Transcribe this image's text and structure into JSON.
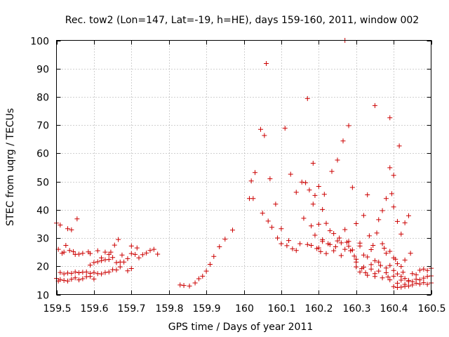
{
  "chart_data": {
    "type": "scatter",
    "title": "Rec. tow2 (Lon=147, Lat=-19, h=HE), days 159-160, 2011, window 002",
    "xlabel": "GPS time / Days of year 2011",
    "ylabel": "STEC from uqrg / TECUs",
    "xlim": [
      159.5,
      160.5
    ],
    "ylim": [
      10,
      100
    ],
    "x_ticks": [
      159.5,
      159.6,
      159.7,
      159.8,
      159.9,
      160.0,
      160.1,
      160.2,
      160.3,
      160.4,
      160.5
    ],
    "x_tick_labels": [
      "159.5",
      "159.6",
      "159.7",
      "159.8",
      "159.9",
      "160",
      "160.1",
      "160.2",
      "160.3",
      "160.4",
      "160.5"
    ],
    "y_ticks": [
      10,
      20,
      30,
      40,
      50,
      60,
      70,
      80,
      90,
      100
    ],
    "y_tick_labels": [
      "10",
      "20",
      "30",
      "40",
      "50",
      "60",
      "70",
      "80",
      "90",
      "100"
    ],
    "grid": true,
    "marker": "+",
    "color": "#cc0000",
    "series": [
      {
        "name": "STEC",
        "points": [
          [
            159.5,
            35.3
          ],
          [
            159.505,
            26.0
          ],
          [
            159.51,
            34.6
          ],
          [
            159.515,
            24.6
          ],
          [
            159.52,
            25.0
          ],
          [
            159.525,
            27.4
          ],
          [
            159.53,
            33.3
          ],
          [
            159.535,
            25.6
          ],
          [
            159.54,
            32.9
          ],
          [
            159.545,
            25.2
          ],
          [
            159.55,
            24.2
          ],
          [
            159.555,
            36.8
          ],
          [
            159.56,
            24.3
          ],
          [
            159.57,
            24.6
          ],
          [
            159.585,
            25.1
          ],
          [
            159.5,
            15.7
          ],
          [
            159.505,
            14.8
          ],
          [
            159.51,
            15.3
          ],
          [
            159.52,
            15.0
          ],
          [
            159.53,
            14.8
          ],
          [
            159.54,
            15.4
          ],
          [
            159.55,
            15.9
          ],
          [
            159.56,
            15.2
          ],
          [
            159.57,
            15.6
          ],
          [
            159.58,
            16.3
          ],
          [
            159.59,
            16.4
          ],
          [
            159.6,
            15.5
          ],
          [
            159.51,
            17.8
          ],
          [
            159.52,
            17.3
          ],
          [
            159.53,
            17.6
          ],
          [
            159.54,
            17.5
          ],
          [
            159.55,
            18.0
          ],
          [
            159.56,
            17.7
          ],
          [
            159.57,
            17.9
          ],
          [
            159.58,
            18.0
          ],
          [
            159.59,
            17.5
          ],
          [
            159.6,
            17.8
          ],
          [
            159.61,
            17.4
          ],
          [
            159.62,
            17.3
          ],
          [
            159.63,
            17.8
          ],
          [
            159.64,
            18.0
          ],
          [
            159.65,
            18.8
          ],
          [
            159.66,
            18.7
          ],
          [
            159.67,
            19.8
          ],
          [
            159.59,
            20.4
          ],
          [
            159.6,
            21.3
          ],
          [
            159.61,
            21.6
          ],
          [
            159.62,
            22.0
          ],
          [
            159.63,
            22.3
          ],
          [
            159.64,
            22.4
          ],
          [
            159.65,
            23.1
          ],
          [
            159.66,
            21.3
          ],
          [
            159.67,
            21.5
          ],
          [
            159.68,
            21.5
          ],
          [
            159.59,
            24.5
          ],
          [
            159.61,
            25.5
          ],
          [
            159.62,
            23.0
          ],
          [
            159.63,
            25.0
          ],
          [
            159.64,
            24.2
          ],
          [
            159.645,
            25.0
          ],
          [
            159.655,
            27.5
          ],
          [
            159.665,
            29.5
          ],
          [
            159.675,
            24.0
          ],
          [
            159.69,
            18.4
          ],
          [
            159.7,
            19.2
          ],
          [
            159.69,
            22.7
          ],
          [
            159.7,
            24.5
          ],
          [
            159.7,
            27.2
          ],
          [
            159.71,
            24.2
          ],
          [
            159.715,
            26.5
          ],
          [
            159.72,
            23.0
          ],
          [
            159.73,
            24.1
          ],
          [
            159.74,
            24.7
          ],
          [
            159.75,
            25.6
          ],
          [
            159.76,
            26.0
          ],
          [
            159.77,
            24.3
          ],
          [
            159.83,
            13.4
          ],
          [
            159.84,
            13.2
          ],
          [
            159.855,
            13.0
          ],
          [
            159.87,
            14.1
          ],
          [
            159.88,
            15.6
          ],
          [
            159.89,
            16.5
          ],
          [
            159.9,
            18.3
          ],
          [
            159.91,
            20.7
          ],
          [
            159.92,
            23.5
          ],
          [
            159.935,
            26.9
          ],
          [
            159.95,
            29.6
          ],
          [
            159.97,
            32.8
          ],
          [
            160.015,
            44.0
          ],
          [
            160.02,
            50.2
          ],
          [
            160.025,
            44.0
          ],
          [
            160.03,
            53.2
          ],
          [
            160.045,
            68.5
          ],
          [
            160.05,
            38.8
          ],
          [
            160.055,
            66.3
          ],
          [
            160.06,
            91.8
          ],
          [
            160.065,
            36.0
          ],
          [
            160.07,
            51.0
          ],
          [
            160.075,
            33.8
          ],
          [
            160.085,
            42.0
          ],
          [
            160.09,
            30.0
          ],
          [
            160.1,
            33.3
          ],
          [
            160.1,
            28.0
          ],
          [
            160.11,
            68.9
          ],
          [
            160.115,
            27.3
          ],
          [
            160.12,
            29.1
          ],
          [
            160.125,
            52.6
          ],
          [
            160.13,
            26.2
          ],
          [
            160.14,
            25.6
          ],
          [
            160.14,
            46.2
          ],
          [
            160.15,
            28.0
          ],
          [
            160.155,
            49.8
          ],
          [
            160.16,
            37.0
          ],
          [
            160.165,
            49.6
          ],
          [
            160.17,
            79.4
          ],
          [
            160.17,
            27.7
          ],
          [
            160.175,
            47.0
          ],
          [
            160.18,
            34.3
          ],
          [
            160.18,
            27.4
          ],
          [
            160.185,
            56.5
          ],
          [
            160.185,
            42.0
          ],
          [
            160.19,
            31.0
          ],
          [
            160.19,
            45.1
          ],
          [
            160.195,
            26.3
          ],
          [
            160.2,
            48.3
          ],
          [
            160.2,
            34.9
          ],
          [
            160.205,
            25.2
          ],
          [
            160.21,
            40.1
          ],
          [
            160.21,
            29.4
          ],
          [
            160.215,
            45.5
          ],
          [
            160.22,
            35.2
          ],
          [
            160.225,
            28.0
          ],
          [
            160.23,
            32.6
          ],
          [
            160.235,
            53.6
          ],
          [
            160.24,
            31.6
          ],
          [
            160.245,
            26.9
          ],
          [
            160.25,
            57.6
          ],
          [
            160.255,
            30.0
          ],
          [
            160.26,
            28.3
          ],
          [
            160.265,
            64.4
          ],
          [
            160.27,
            100.0
          ],
          [
            160.27,
            33.0
          ],
          [
            160.275,
            28.5
          ],
          [
            160.28,
            69.8
          ],
          [
            160.28,
            27.1
          ],
          [
            160.285,
            25.5
          ],
          [
            160.29,
            47.9
          ],
          [
            160.295,
            23.6
          ],
          [
            160.3,
            35.1
          ],
          [
            160.3,
            21.5
          ],
          [
            160.31,
            28.2
          ],
          [
            160.315,
            19.2
          ],
          [
            160.32,
            38.0
          ],
          [
            160.325,
            17.7
          ],
          [
            160.33,
            45.3
          ],
          [
            160.335,
            30.8
          ],
          [
            160.34,
            20.6
          ],
          [
            160.345,
            27.4
          ],
          [
            160.35,
            76.9
          ],
          [
            160.35,
            17.4
          ],
          [
            160.355,
            31.8
          ],
          [
            160.36,
            36.5
          ],
          [
            160.365,
            20.3
          ],
          [
            160.37,
            39.7
          ],
          [
            160.375,
            26.4
          ],
          [
            160.38,
            44.0
          ],
          [
            160.385,
            16.2
          ],
          [
            160.39,
            72.6
          ],
          [
            160.39,
            54.9
          ],
          [
            160.395,
            45.7
          ],
          [
            160.4,
            41.0
          ],
          [
            160.4,
            52.2
          ],
          [
            160.405,
            22.5
          ],
          [
            160.41,
            35.9
          ],
          [
            160.415,
            62.6
          ],
          [
            160.42,
            31.4
          ],
          [
            160.425,
            17.9
          ],
          [
            160.43,
            35.4
          ],
          [
            160.44,
            37.9
          ],
          [
            160.445,
            24.6
          ],
          [
            160.2,
            26.5
          ],
          [
            160.21,
            28.8
          ],
          [
            160.22,
            24.5
          ],
          [
            160.23,
            27.7
          ],
          [
            160.24,
            25.5
          ],
          [
            160.25,
            29.0
          ],
          [
            160.26,
            23.8
          ],
          [
            160.27,
            26.0
          ],
          [
            160.28,
            28.8
          ],
          [
            160.29,
            25.8
          ],
          [
            160.3,
            22.5
          ],
          [
            160.31,
            27.2
          ],
          [
            160.32,
            24.0
          ],
          [
            160.33,
            23.3
          ],
          [
            160.34,
            25.9
          ],
          [
            160.35,
            22.0
          ],
          [
            160.36,
            21.5
          ],
          [
            160.37,
            28.0
          ],
          [
            160.38,
            24.6
          ],
          [
            160.39,
            25.3
          ],
          [
            160.4,
            23.0
          ],
          [
            160.41,
            20.9
          ],
          [
            160.42,
            19.9
          ],
          [
            160.43,
            22.2
          ],
          [
            160.3,
            19.8
          ],
          [
            160.31,
            18.0
          ],
          [
            160.32,
            19.7
          ],
          [
            160.33,
            16.8
          ],
          [
            160.34,
            19.0
          ],
          [
            160.35,
            16.4
          ],
          [
            160.36,
            18.3
          ],
          [
            160.37,
            15.9
          ],
          [
            160.38,
            17.7
          ],
          [
            160.39,
            15.2
          ],
          [
            160.4,
            16.5
          ],
          [
            160.41,
            14.0
          ],
          [
            160.42,
            15.1
          ],
          [
            160.43,
            13.6
          ],
          [
            160.44,
            14.6
          ],
          [
            160.45,
            13.4
          ],
          [
            160.46,
            14.0
          ],
          [
            160.47,
            13.7
          ],
          [
            160.48,
            14.2
          ],
          [
            160.49,
            13.6
          ],
          [
            160.5,
            14.1
          ],
          [
            160.38,
            19.4
          ],
          [
            160.39,
            20.3
          ],
          [
            160.4,
            18.5
          ],
          [
            160.41,
            17.3
          ],
          [
            160.42,
            16.4
          ],
          [
            160.43,
            15.7
          ],
          [
            160.44,
            15.0
          ],
          [
            160.45,
            14.6
          ],
          [
            160.46,
            15.4
          ],
          [
            160.47,
            15.2
          ],
          [
            160.48,
            15.8
          ],
          [
            160.49,
            16.4
          ],
          [
            160.5,
            16.6
          ],
          [
            160.4,
            12.8
          ],
          [
            160.41,
            12.5
          ],
          [
            160.42,
            12.6
          ],
          [
            160.43,
            12.9
          ],
          [
            160.44,
            13.0
          ],
          [
            160.45,
            17.4
          ],
          [
            160.46,
            17.0
          ],
          [
            160.47,
            18.6
          ],
          [
            160.48,
            19.0
          ],
          [
            160.49,
            18.5
          ],
          [
            160.5,
            19.3
          ]
        ]
      }
    ]
  }
}
